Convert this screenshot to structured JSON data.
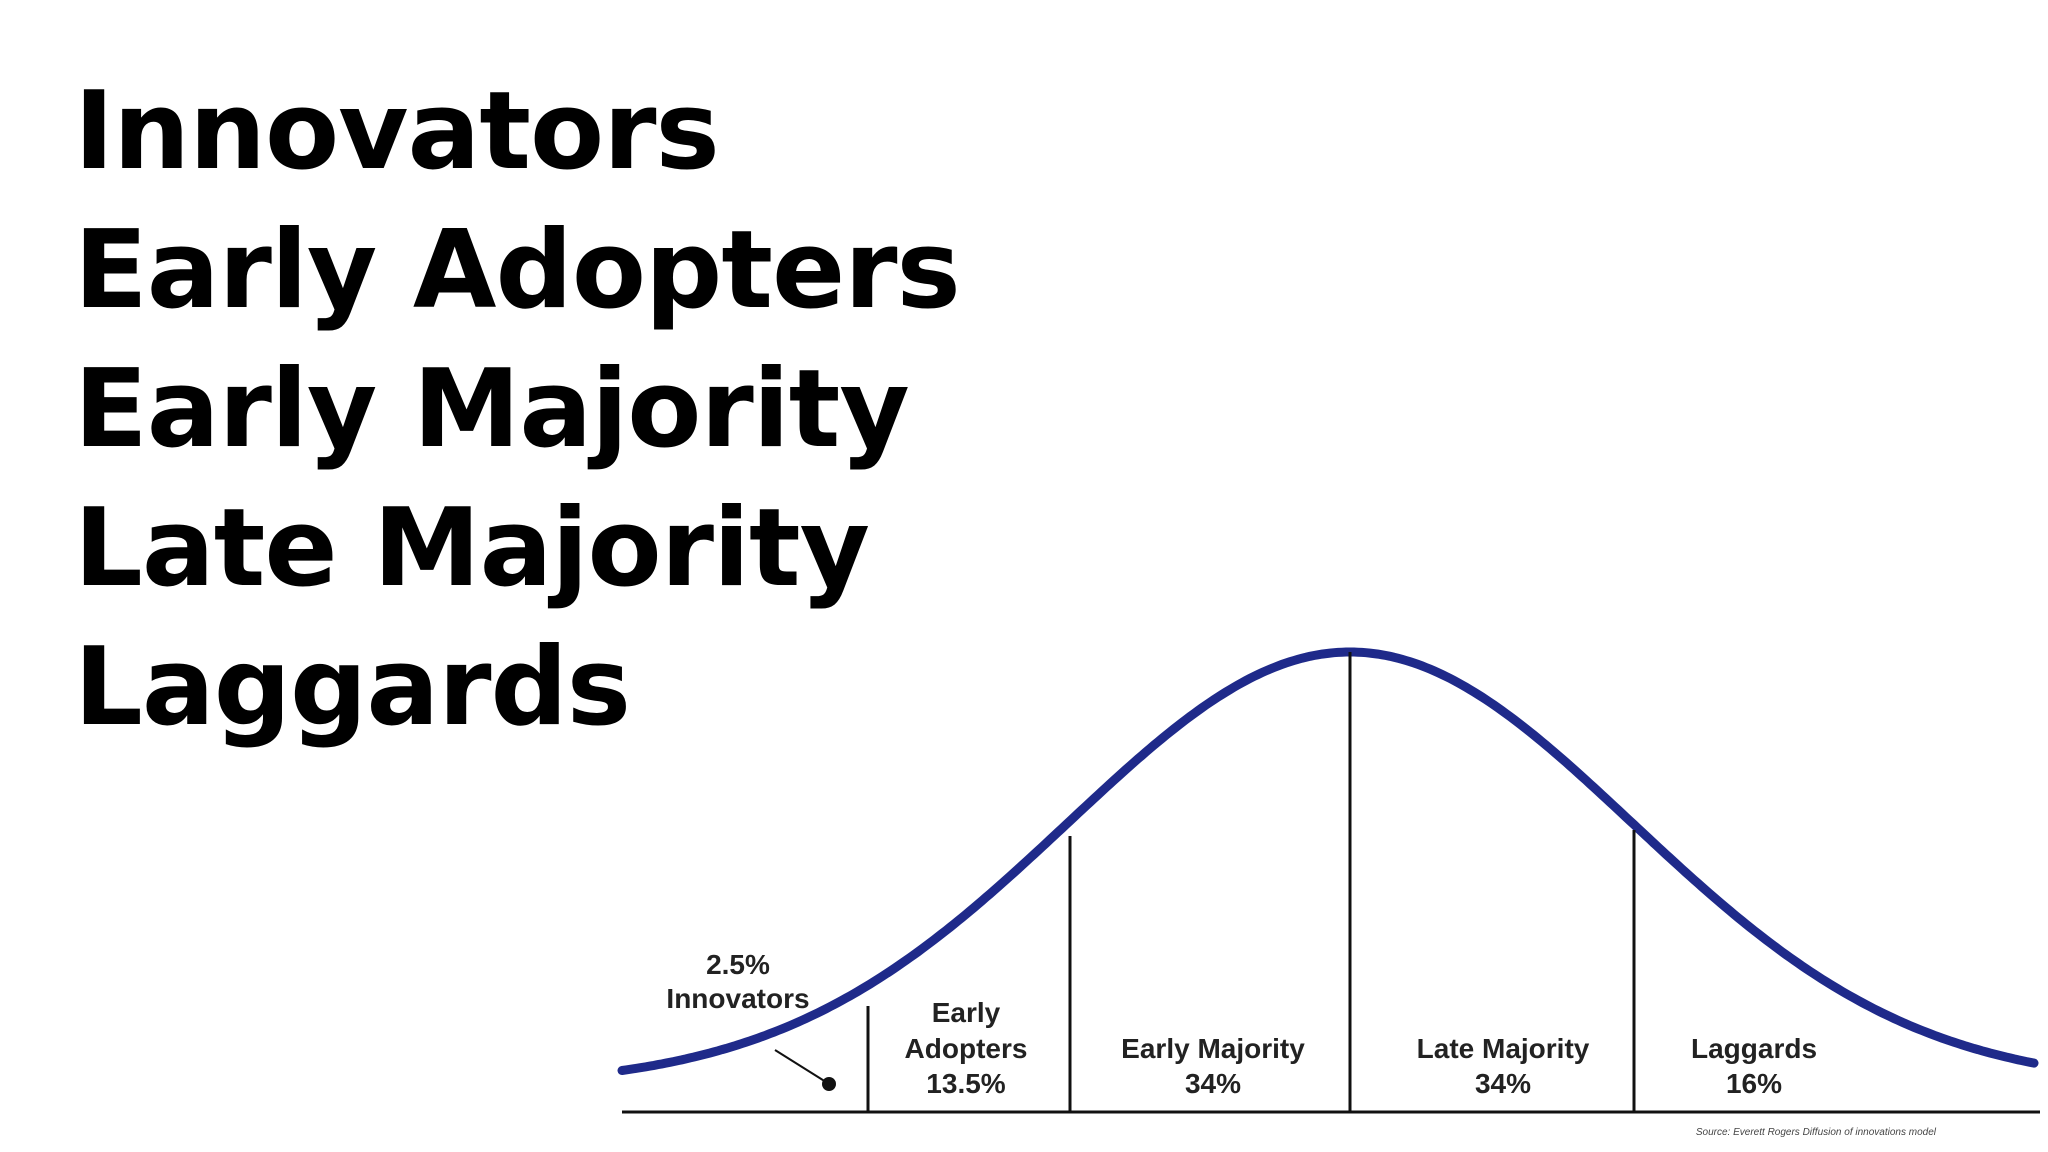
{
  "heading_list": [
    "Innovators",
    "Early Adopters",
    "Early Majority",
    "Late Majority",
    "Laggards"
  ],
  "segments": [
    {
      "lines": [
        "2.5%",
        "Innovators"
      ]
    },
    {
      "lines": [
        "Early",
        "Adopters",
        "13.5%"
      ]
    },
    {
      "lines": [
        "Early Majority",
        "34%"
      ]
    },
    {
      "lines": [
        "Late Majority",
        "34%"
      ]
    },
    {
      "lines": [
        "Laggards",
        "16%"
      ]
    }
  ],
  "source": "Source: Everett Rogers Diffusion of innovations model",
  "colors": {
    "curve": "#1f2a8a",
    "lines": "#111111",
    "text": "#000000"
  }
}
